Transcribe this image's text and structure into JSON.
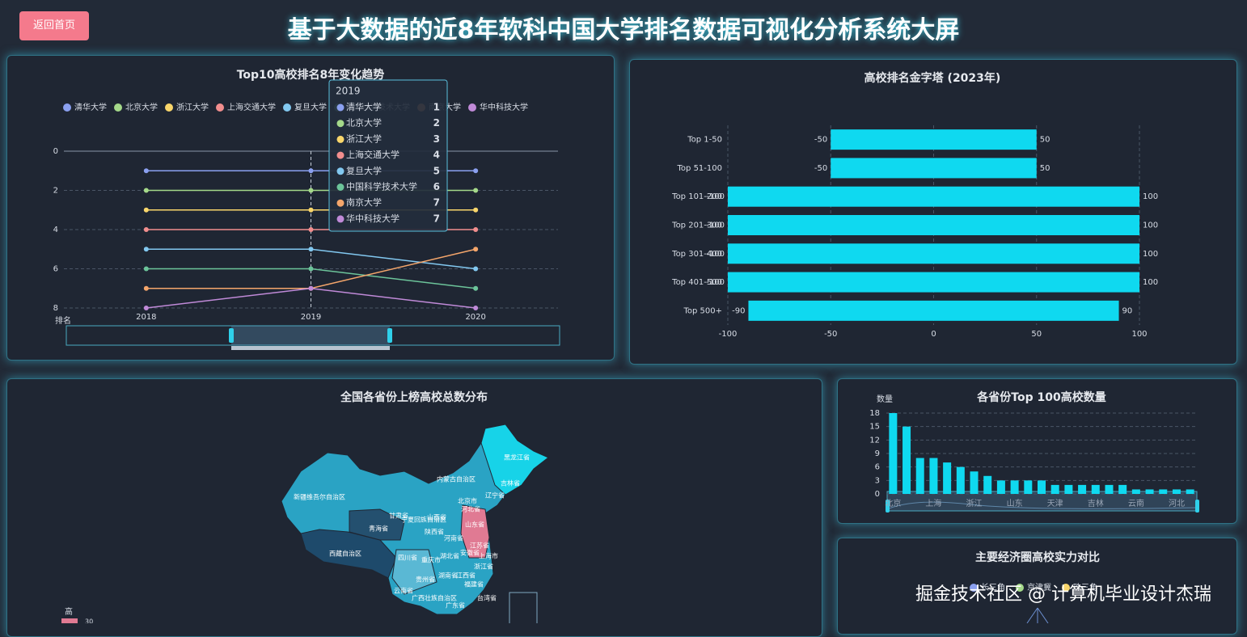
{
  "header": {
    "button": "返回首页",
    "title": "基于大数据的近8年软科中国大学排名数据可视化分析系统大屏"
  },
  "chart_data": [
    {
      "type": "line",
      "title": "Top10高校排名8年变化趋势",
      "categories": [
        "2018",
        "2019",
        "2020"
      ],
      "ylabel": "排名",
      "ylim": [
        0,
        8
      ],
      "yticks": [
        0,
        2,
        4,
        6,
        8
      ],
      "y_inverse": true,
      "grid": true,
      "legend": "top",
      "series": [
        {
          "name": "清华大学",
          "color": "#8ba0f0",
          "values": [
            1,
            1,
            1
          ]
        },
        {
          "name": "北京大学",
          "color": "#a5d98a",
          "values": [
            2,
            2,
            2
          ]
        },
        {
          "name": "浙江大学",
          "color": "#f9d66b",
          "values": [
            3,
            3,
            3
          ]
        },
        {
          "name": "上海交通大学",
          "color": "#f28e8e",
          "values": [
            4,
            4,
            4
          ]
        },
        {
          "name": "复旦大学",
          "color": "#82c8f0",
          "values": [
            5,
            5,
            6
          ]
        },
        {
          "name": "中国科学技术大学",
          "color": "#6cc49a",
          "values": [
            6,
            6,
            7
          ]
        },
        {
          "name": "南京大学",
          "color": "#f5a66b",
          "values": [
            7,
            7,
            5
          ]
        },
        {
          "name": "华中科技大学",
          "color": "#c08ad8",
          "values": [
            8,
            7,
            8
          ]
        }
      ]
    },
    {
      "type": "bar",
      "horizontal": true,
      "title": "高校排名金字塔 (2023年)",
      "categories": [
        "Top 1-50",
        "Top 51-100",
        "Top 101-200",
        "Top 201-300",
        "Top 301-400",
        "Top 401-500",
        "Top 500+"
      ],
      "xlim": [
        -100,
        100
      ],
      "xticks": [
        -100,
        -50,
        0,
        50,
        100
      ],
      "grid": true,
      "series": [
        {
          "color": "#0fd9f0",
          "values": [
            -50,
            -50,
            -100,
            -100,
            -100,
            -100,
            -90
          ]
        },
        {
          "color": "#0fd9f0",
          "values": [
            50,
            50,
            100,
            100,
            100,
            100,
            90
          ]
        }
      ]
    },
    {
      "type": "map",
      "title": "全国各省份上榜高校总数分布",
      "regions": [
        "黑龙江省",
        "吉林省",
        "辽宁省",
        "内蒙古自治区",
        "北京市",
        "河北省",
        "山东省",
        "新疆维吾尔自治区",
        "甘肃省",
        "宁夏回族自治区",
        "山西省",
        "青海省",
        "陕西省",
        "河南省",
        "江苏省",
        "安徽省",
        "上海市",
        "西藏自治区",
        "四川省",
        "重庆市",
        "湖北省",
        "浙江省",
        "湖南省",
        "江西省",
        "贵州省",
        "福建省",
        "云南省",
        "广西壮族自治区",
        "台湾省",
        "广东省"
      ],
      "visual_map": {
        "label": "高",
        "max": 30
      }
    },
    {
      "type": "bar",
      "title": "各省份Top 100高校数量",
      "ylabel": "数量",
      "categories": [
        "北京",
        null,
        null,
        "上海",
        null,
        null,
        "浙江",
        null,
        null,
        "山东",
        null,
        null,
        "天津",
        null,
        null,
        "吉林",
        null,
        null,
        "云南",
        null,
        null,
        "河北",
        null
      ],
      "values": [
        18,
        15,
        8,
        8,
        7,
        6,
        5,
        4,
        3,
        3,
        3,
        3,
        2,
        2,
        2,
        2,
        2,
        2,
        1,
        1,
        1,
        1,
        1
      ],
      "color": "#0fd9f0",
      "ylim": [
        0,
        18
      ],
      "yticks": [
        0,
        3,
        6,
        9,
        12,
        15,
        18
      ],
      "grid": true
    },
    {
      "type": "radar",
      "title": "主要经济圈高校实力对比",
      "series": [
        {
          "name": "长三角",
          "color": "#8ba0f0"
        },
        {
          "name": "京津冀",
          "color": "#a5d98a"
        },
        {
          "name": "珠三角",
          "color": "#f9d66b"
        }
      ]
    }
  ],
  "watermark": "掘金技术社区 @ 计算机毕业设计杰瑞"
}
